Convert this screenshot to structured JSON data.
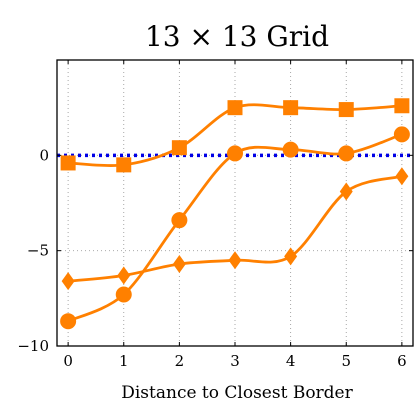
{
  "chart_data": {
    "type": "line",
    "title": "13 × 13 Grid",
    "xlabel": "Distance to Closest Border",
    "ylabel": "",
    "x": [
      0,
      1,
      2,
      3,
      4,
      5,
      6
    ],
    "xlim": [
      -0.2,
      6.2
    ],
    "ylim": [
      -10,
      5
    ],
    "xticks": [
      "0",
      "1",
      "2",
      "3",
      "4",
      "5",
      "6"
    ],
    "yticks": [
      {
        "value": -10,
        "label": "−10"
      },
      {
        "value": -5,
        "label": "−5"
      },
      {
        "value": 0,
        "label": "0"
      }
    ],
    "grid": true,
    "colors": {
      "series": "#ff8000",
      "reference": "#0000e6"
    },
    "reference_line": {
      "y": 0,
      "style": "dotted"
    },
    "series": [
      {
        "marker": "square",
        "values": [
          -0.4,
          -0.5,
          0.4,
          2.5,
          2.5,
          2.4,
          2.6
        ]
      },
      {
        "marker": "circle",
        "values": [
          -8.7,
          -7.3,
          -3.4,
          0.1,
          0.3,
          0.1,
          1.1
        ]
      },
      {
        "marker": "diamond",
        "values": [
          -6.6,
          -6.3,
          -5.7,
          -5.5,
          -5.3,
          -1.9,
          -1.1
        ]
      }
    ]
  }
}
